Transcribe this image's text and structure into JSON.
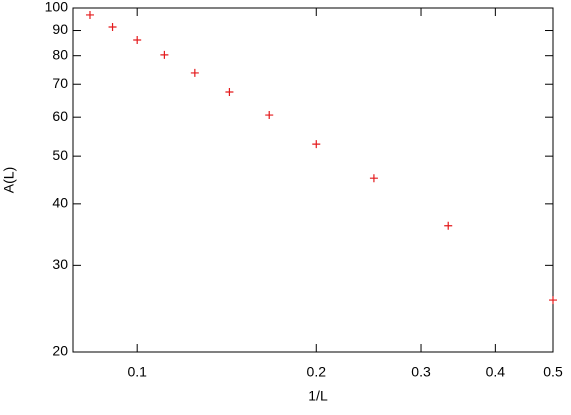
{
  "chart_data": {
    "type": "scatter",
    "x_label": "1/L",
    "y_label": "A(L)",
    "x": [
      0.0833,
      0.0909,
      0.1,
      0.1111,
      0.125,
      0.1429,
      0.1667,
      0.2,
      0.25,
      0.3333,
      0.5
    ],
    "series": [
      {
        "color": "#e41a1c",
        "values": [
          96.8,
          91.5,
          86.1,
          80.3,
          73.8,
          67.5,
          60.6,
          52.9,
          45.1,
          36.1,
          25.5
        ]
      }
    ],
    "xlog": true,
    "ylog": true,
    "xlim": [
      0.078,
      0.5
    ],
    "ylim": [
      20,
      100
    ],
    "xticks": [
      0.1,
      0.2,
      0.3,
      0.4,
      0.5
    ],
    "yticks": [
      20,
      30,
      40,
      50,
      60,
      70,
      80,
      90,
      100
    ]
  }
}
